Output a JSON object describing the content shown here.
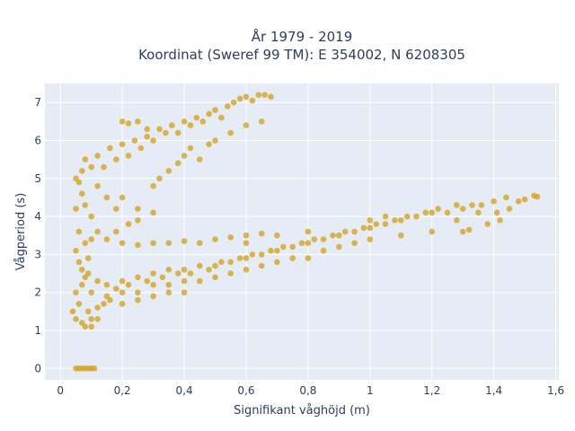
{
  "chart_data": {
    "type": "scatter",
    "title": "År 1979 - 2019",
    "subtitle": "Koordinat (Sweref 99 TM): E 354002, N 6208305",
    "xlabel": "Signifikant våghöjd (m)",
    "ylabel": "Vågperiod (s)",
    "xlim": [
      -0.05,
      1.61
    ],
    "ylim": [
      -0.3,
      7.5
    ],
    "x_ticks": [
      0,
      0.2,
      0.4,
      0.6,
      0.8,
      1,
      1.2,
      1.4,
      1.6
    ],
    "x_tick_labels": [
      "0",
      "0,2",
      "0,4",
      "0,6",
      "0,8",
      "1",
      "1,2",
      "1,4",
      "1,6"
    ],
    "y_ticks": [
      0,
      1,
      2,
      3,
      4,
      5,
      6,
      7
    ],
    "y_tick_labels": [
      "0",
      "1",
      "2",
      "3",
      "4",
      "5",
      "6",
      "7"
    ],
    "grid": true,
    "color": "#d4a21f",
    "background": "#e5ecf6",
    "series": [
      {
        "points": [
          [
            0.05,
            0
          ],
          [
            0.06,
            0
          ],
          [
            0.07,
            0
          ],
          [
            0.08,
            0
          ],
          [
            0.09,
            0
          ],
          [
            0.1,
            0
          ],
          [
            0.11,
            0
          ],
          [
            0.04,
            1.5
          ],
          [
            0.05,
            1.3
          ],
          [
            0.06,
            1.7
          ],
          [
            0.07,
            1.2
          ],
          [
            0.08,
            1.1
          ],
          [
            0.09,
            1.5
          ],
          [
            0.1,
            1.3
          ],
          [
            0.12,
            1.6
          ],
          [
            0.14,
            1.7
          ],
          [
            0.16,
            1.8
          ],
          [
            0.05,
            2.0
          ],
          [
            0.07,
            2.2
          ],
          [
            0.09,
            2.5
          ],
          [
            0.1,
            2.0
          ],
          [
            0.12,
            2.3
          ],
          [
            0.15,
            2.2
          ],
          [
            0.18,
            2.1
          ],
          [
            0.2,
            2.3
          ],
          [
            0.22,
            2.2
          ],
          [
            0.25,
            2.4
          ],
          [
            0.28,
            2.3
          ],
          [
            0.3,
            2.5
          ],
          [
            0.33,
            2.4
          ],
          [
            0.35,
            2.6
          ],
          [
            0.38,
            2.5
          ],
          [
            0.4,
            2.6
          ],
          [
            0.42,
            2.5
          ],
          [
            0.45,
            2.7
          ],
          [
            0.48,
            2.6
          ],
          [
            0.5,
            2.7
          ],
          [
            0.52,
            2.8
          ],
          [
            0.55,
            2.8
          ],
          [
            0.58,
            2.9
          ],
          [
            0.6,
            2.9
          ],
          [
            0.62,
            3.0
          ],
          [
            0.65,
            3.0
          ],
          [
            0.68,
            3.1
          ],
          [
            0.7,
            3.1
          ],
          [
            0.72,
            3.2
          ],
          [
            0.75,
            3.2
          ],
          [
            0.78,
            3.3
          ],
          [
            0.8,
            3.3
          ],
          [
            0.82,
            3.4
          ],
          [
            0.85,
            3.4
          ],
          [
            0.88,
            3.5
          ],
          [
            0.9,
            3.5
          ],
          [
            0.92,
            3.6
          ],
          [
            0.95,
            3.6
          ],
          [
            0.98,
            3.7
          ],
          [
            1.0,
            3.7
          ],
          [
            1.02,
            3.8
          ],
          [
            1.05,
            3.8
          ],
          [
            1.08,
            3.9
          ],
          [
            1.1,
            3.9
          ],
          [
            1.12,
            4.0
          ],
          [
            1.15,
            4.0
          ],
          [
            1.18,
            4.1
          ],
          [
            1.2,
            4.1
          ],
          [
            1.22,
            4.2
          ],
          [
            1.25,
            4.1
          ],
          [
            1.28,
            4.3
          ],
          [
            1.3,
            4.2
          ],
          [
            1.33,
            4.3
          ],
          [
            1.36,
            4.3
          ],
          [
            1.4,
            4.4
          ],
          [
            1.44,
            4.5
          ],
          [
            1.5,
            4.45
          ],
          [
            1.53,
            4.55
          ],
          [
            1.54,
            4.52
          ],
          [
            1.41,
            4.1
          ],
          [
            1.45,
            4.2
          ],
          [
            1.38,
            3.8
          ],
          [
            1.42,
            3.9
          ],
          [
            1.35,
            4.1
          ],
          [
            1.28,
            3.9
          ],
          [
            1.2,
            3.6
          ],
          [
            1.1,
            3.5
          ],
          [
            1.0,
            3.4
          ],
          [
            0.95,
            3.3
          ],
          [
            0.9,
            3.2
          ],
          [
            0.85,
            3.1
          ],
          [
            0.8,
            2.9
          ],
          [
            0.75,
            2.9
          ],
          [
            0.7,
            2.8
          ],
          [
            0.65,
            2.7
          ],
          [
            0.6,
            2.6
          ],
          [
            0.55,
            2.5
          ],
          [
            0.5,
            2.4
          ],
          [
            0.45,
            2.3
          ],
          [
            0.4,
            2.3
          ],
          [
            0.35,
            2.2
          ],
          [
            0.3,
            2.2
          ],
          [
            0.25,
            2.0
          ],
          [
            0.2,
            2.0
          ],
          [
            0.15,
            1.9
          ],
          [
            0.2,
            3.3
          ],
          [
            0.25,
            3.25
          ],
          [
            0.3,
            3.3
          ],
          [
            0.35,
            3.3
          ],
          [
            0.4,
            3.35
          ],
          [
            0.45,
            3.3
          ],
          [
            0.5,
            3.4
          ],
          [
            0.55,
            3.45
          ],
          [
            0.6,
            3.5
          ],
          [
            0.65,
            3.55
          ],
          [
            0.7,
            3.5
          ],
          [
            0.1,
            3.4
          ],
          [
            0.12,
            3.6
          ],
          [
            0.15,
            3.4
          ],
          [
            0.18,
            3.6
          ],
          [
            0.22,
            3.8
          ],
          [
            0.25,
            3.9
          ],
          [
            0.1,
            4.0
          ],
          [
            0.08,
            4.3
          ],
          [
            0.07,
            4.6
          ],
          [
            0.06,
            4.9
          ],
          [
            0.05,
            5.0
          ],
          [
            0.07,
            5.2
          ],
          [
            0.08,
            5.5
          ],
          [
            0.1,
            5.3
          ],
          [
            0.12,
            5.6
          ],
          [
            0.14,
            5.3
          ],
          [
            0.16,
            5.8
          ],
          [
            0.18,
            5.5
          ],
          [
            0.2,
            5.9
          ],
          [
            0.22,
            5.6
          ],
          [
            0.24,
            6.0
          ],
          [
            0.26,
            5.8
          ],
          [
            0.28,
            6.1
          ],
          [
            0.3,
            6.0
          ],
          [
            0.32,
            6.3
          ],
          [
            0.34,
            6.2
          ],
          [
            0.36,
            6.4
          ],
          [
            0.38,
            6.2
          ],
          [
            0.4,
            6.5
          ],
          [
            0.42,
            6.4
          ],
          [
            0.44,
            6.6
          ],
          [
            0.46,
            6.5
          ],
          [
            0.48,
            6.7
          ],
          [
            0.5,
            6.8
          ],
          [
            0.52,
            6.6
          ],
          [
            0.54,
            6.9
          ],
          [
            0.56,
            7.0
          ],
          [
            0.58,
            7.1
          ],
          [
            0.6,
            7.15
          ],
          [
            0.62,
            7.05
          ],
          [
            0.64,
            7.2
          ],
          [
            0.66,
            7.2
          ],
          [
            0.68,
            7.15
          ],
          [
            0.2,
            6.5
          ],
          [
            0.22,
            6.45
          ],
          [
            0.25,
            6.5
          ],
          [
            0.28,
            6.3
          ],
          [
            0.3,
            4.8
          ],
          [
            0.32,
            5.0
          ],
          [
            0.35,
            5.2
          ],
          [
            0.38,
            5.4
          ],
          [
            0.4,
            5.6
          ],
          [
            0.42,
            5.8
          ],
          [
            0.45,
            5.5
          ],
          [
            0.48,
            5.9
          ],
          [
            0.5,
            6.0
          ],
          [
            0.55,
            6.2
          ],
          [
            0.6,
            6.4
          ],
          [
            0.65,
            6.5
          ],
          [
            0.2,
            4.5
          ],
          [
            0.25,
            4.2
          ],
          [
            0.3,
            4.1
          ],
          [
            0.18,
            4.2
          ],
          [
            0.15,
            4.5
          ],
          [
            0.12,
            4.8
          ],
          [
            0.05,
            3.1
          ],
          [
            0.06,
            2.8
          ],
          [
            0.07,
            2.6
          ],
          [
            0.08,
            3.3
          ],
          [
            0.09,
            2.9
          ],
          [
            0.05,
            4.2
          ],
          [
            0.06,
            3.6
          ],
          [
            0.08,
            2.4
          ],
          [
            0.1,
            1.1
          ],
          [
            0.12,
            1.3
          ],
          [
            0.2,
            1.7
          ],
          [
            0.25,
            1.8
          ],
          [
            0.3,
            1.9
          ],
          [
            0.35,
            2.0
          ],
          [
            0.4,
            2.0
          ],
          [
            0.6,
            3.3
          ],
          [
            0.8,
            3.6
          ],
          [
            1.0,
            3.9
          ],
          [
            1.05,
            4.0
          ],
          [
            1.3,
            3.6
          ],
          [
            1.32,
            3.65
          ],
          [
            1.48,
            4.4
          ]
        ]
      }
    ]
  }
}
